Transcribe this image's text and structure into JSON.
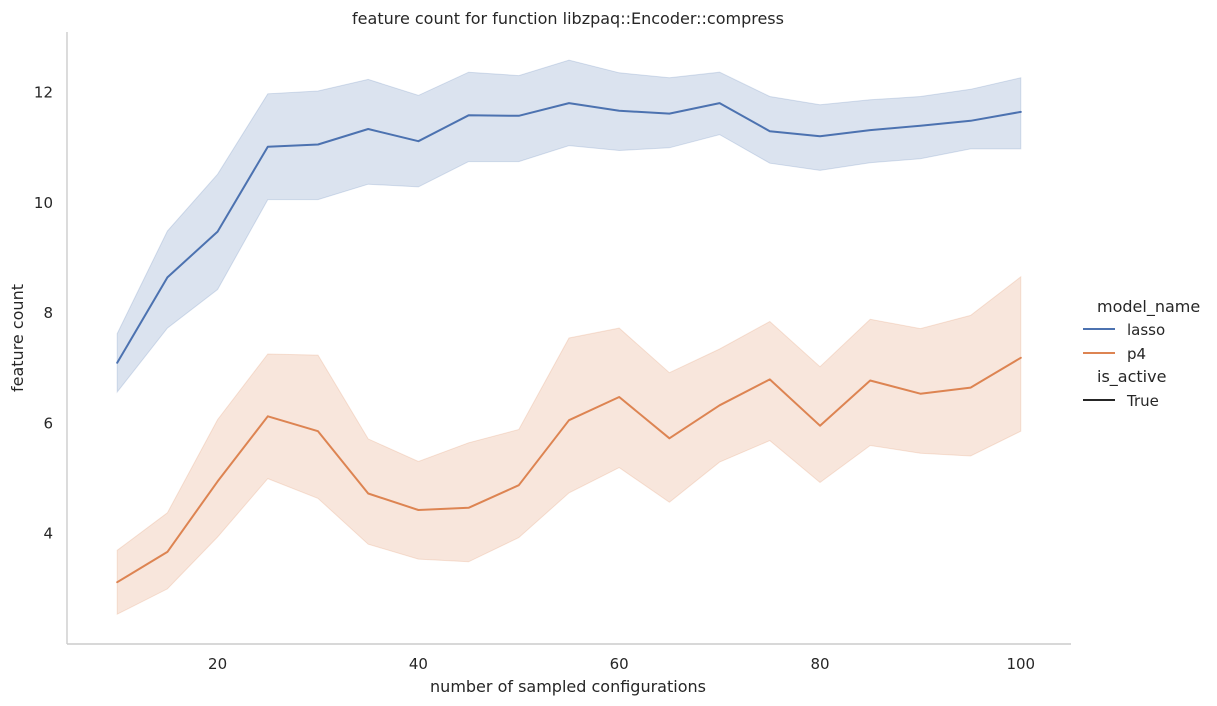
{
  "chart_data": {
    "type": "line",
    "title": "feature count for function libzpaq::Encoder::compress",
    "xlabel": "number of sampled configurations",
    "ylabel": "feature count",
    "xlim": [
      5,
      105
    ],
    "ylim": [
      2.0,
      13.1
    ],
    "xticks": [
      20,
      40,
      60,
      80,
      100
    ],
    "yticks": [
      4,
      6,
      8,
      10,
      12
    ],
    "grid": false,
    "legend": {
      "position": "right",
      "hue_title": "model_name",
      "style_title": "is_active",
      "style_entries": [
        "True"
      ]
    },
    "x": [
      10,
      15,
      20,
      25,
      30,
      35,
      40,
      45,
      50,
      55,
      60,
      65,
      70,
      75,
      80,
      85,
      90,
      95,
      100
    ],
    "series": [
      {
        "name": "lasso",
        "color": "#4c72b0",
        "values": [
          7.1,
          8.65,
          9.48,
          11.02,
          11.06,
          11.34,
          11.12,
          11.59,
          11.58,
          11.81,
          11.67,
          11.62,
          11.81,
          11.3,
          11.21,
          11.32,
          11.4,
          11.49,
          11.65
        ],
        "ci_low": [
          6.57,
          7.73,
          8.43,
          10.06,
          10.06,
          10.34,
          10.29,
          10.75,
          10.75,
          11.04,
          10.95,
          11.0,
          11.24,
          10.72,
          10.59,
          10.73,
          10.8,
          10.98,
          10.98
        ],
        "ci_high": [
          7.63,
          9.49,
          10.52,
          11.98,
          12.03,
          12.24,
          11.95,
          12.37,
          12.31,
          12.59,
          12.36,
          12.27,
          12.37,
          11.93,
          11.78,
          11.87,
          11.93,
          12.06,
          12.27
        ]
      },
      {
        "name": "p4",
        "color": "#dd8452",
        "values": [
          3.12,
          3.67,
          4.95,
          6.13,
          5.86,
          4.73,
          4.43,
          4.47,
          4.88,
          6.06,
          6.48,
          5.73,
          6.33,
          6.8,
          5.96,
          6.78,
          6.54,
          6.65,
          7.19
        ],
        "ci_low": [
          2.54,
          3.0,
          3.94,
          5.0,
          4.64,
          3.81,
          3.54,
          3.49,
          3.93,
          4.74,
          5.2,
          4.57,
          5.3,
          5.69,
          4.93,
          5.6,
          5.46,
          5.41,
          5.86
        ],
        "ci_high": [
          3.7,
          4.38,
          6.07,
          7.26,
          7.24,
          5.72,
          5.31,
          5.65,
          5.89,
          7.55,
          7.73,
          6.92,
          7.35,
          7.85,
          7.03,
          7.89,
          7.72,
          7.96,
          8.66
        ]
      }
    ]
  }
}
